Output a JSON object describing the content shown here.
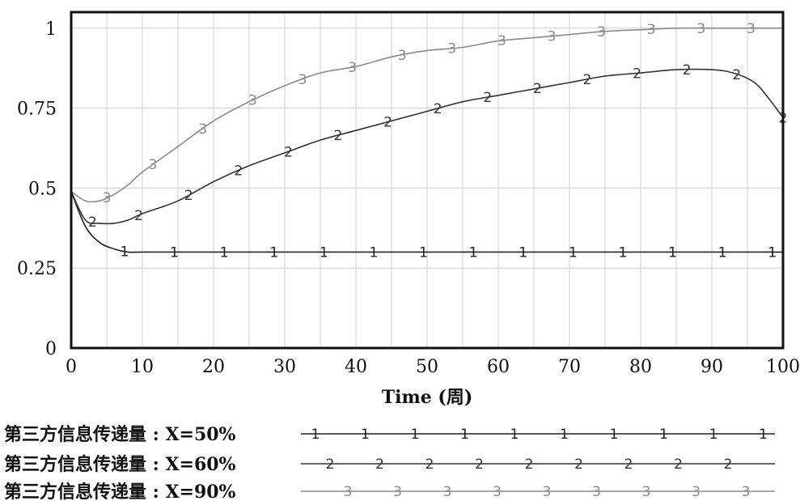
{
  "chart_data": {
    "type": "line",
    "xlabel": "Time (周)",
    "ylabel": "",
    "xlim": [
      0,
      100
    ],
    "ylim": [
      0,
      1.05
    ],
    "xticks": [
      "0",
      "10",
      "20",
      "30",
      "40",
      "50",
      "60",
      "70",
      "80",
      "90",
      "100"
    ],
    "yticks": [
      "0",
      "0.25",
      "0.5",
      "0.75",
      "1"
    ],
    "grid": true,
    "legend_position": "bottom",
    "series": [
      {
        "name": "第三方信息传递量 : X=50%",
        "marker": "1",
        "color": "#222222",
        "x": [
          0,
          2,
          4,
          6,
          8,
          10,
          15,
          20,
          30,
          40,
          50,
          60,
          70,
          80,
          90,
          100
        ],
        "y": [
          0.49,
          0.38,
          0.33,
          0.31,
          0.3,
          0.3,
          0.3,
          0.3,
          0.3,
          0.3,
          0.3,
          0.3,
          0.3,
          0.3,
          0.3,
          0.3
        ],
        "marker_x": [
          7.5,
          14.5,
          21.5,
          28.5,
          35.5,
          42.5,
          49.5,
          56.5,
          63.5,
          70.5,
          77.5,
          84.5,
          91.5,
          98.5
        ]
      },
      {
        "name": "第三方信息传递量 : X=60%",
        "marker": "2",
        "color": "#333333",
        "x": [
          0,
          2,
          4,
          6,
          8,
          10,
          15,
          20,
          25,
          30,
          35,
          40,
          45,
          50,
          55,
          60,
          65,
          70,
          75,
          80,
          85,
          90,
          93,
          96,
          98,
          100
        ],
        "y": [
          0.49,
          0.4,
          0.39,
          0.39,
          0.4,
          0.42,
          0.46,
          0.52,
          0.57,
          0.61,
          0.65,
          0.68,
          0.71,
          0.74,
          0.77,
          0.79,
          0.81,
          0.83,
          0.85,
          0.86,
          0.87,
          0.87,
          0.86,
          0.83,
          0.78,
          0.72
        ],
        "marker_x": [
          3,
          9.5,
          16.5,
          23.5,
          30.5,
          37.5,
          44.5,
          51.5,
          58.5,
          65.5,
          72.5,
          79.5,
          86.5,
          93.5,
          100
        ]
      },
      {
        "name": "第三方信息传递量 : X=90%",
        "marker": "3",
        "color": "#8a8a8a",
        "x": [
          0,
          2,
          4,
          6,
          8,
          10,
          15,
          20,
          25,
          30,
          35,
          40,
          45,
          50,
          55,
          60,
          65,
          70,
          75,
          80,
          85,
          90,
          95,
          100
        ],
        "y": [
          0.49,
          0.46,
          0.46,
          0.48,
          0.51,
          0.55,
          0.63,
          0.71,
          0.77,
          0.82,
          0.86,
          0.88,
          0.91,
          0.93,
          0.94,
          0.96,
          0.97,
          0.98,
          0.99,
          0.995,
          1.0,
          1.0,
          1.0,
          1.0
        ],
        "marker_x": [
          5,
          11.5,
          18.5,
          25.5,
          32.5,
          39.5,
          46.5,
          53.5,
          60.5,
          67.5,
          74.5,
          81.5,
          88.5,
          95.5
        ]
      }
    ]
  }
}
